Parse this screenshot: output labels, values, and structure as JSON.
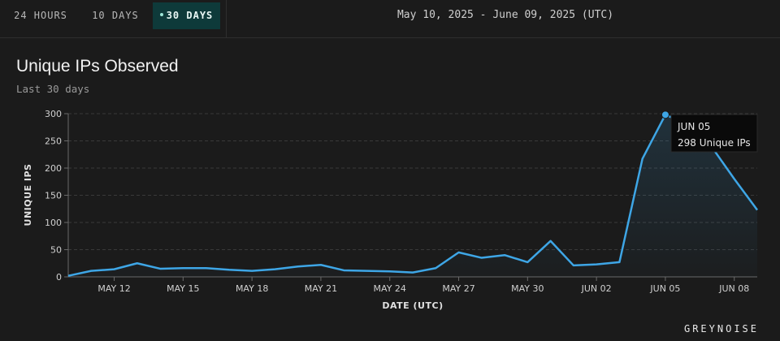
{
  "tabs": [
    {
      "label": "24 HOURS",
      "active": false
    },
    {
      "label": "10 DAYS",
      "active": false
    },
    {
      "label": "30 DAYS",
      "active": true
    }
  ],
  "date_range": "May 10, 2025 - June 09, 2025 (UTC)",
  "title": "Unique IPs Observed",
  "subtitle": "Last 30 days",
  "tooltip": {
    "date": "JUN 05",
    "value": "298 Unique IPs"
  },
  "brand": "GREYNOISE",
  "colors": {
    "line": "#3ea6e6",
    "accent_tab": "#0e3a3a",
    "background": "#1b1b1b"
  },
  "chart_data": {
    "type": "area",
    "xlabel": "DATE (UTC)",
    "ylabel": "UNIQUE IPS",
    "ylim": [
      0,
      300
    ],
    "yticks": [
      0,
      50,
      100,
      150,
      200,
      250,
      300
    ],
    "grid": true,
    "xtick_labels": [
      "MAY 12",
      "MAY 15",
      "MAY 18",
      "MAY 21",
      "MAY 24",
      "MAY 27",
      "MAY 30",
      "JUN 02",
      "JUN 05",
      "JUN 08"
    ],
    "xtick_dates": [
      "2025-05-12",
      "2025-05-15",
      "2025-05-18",
      "2025-05-21",
      "2025-05-24",
      "2025-05-27",
      "2025-05-30",
      "2025-06-02",
      "2025-06-05",
      "2025-06-08"
    ],
    "series": [
      {
        "x": [
          "2025-05-10",
          "2025-05-11",
          "2025-05-12",
          "2025-05-13",
          "2025-05-14",
          "2025-05-15",
          "2025-05-16",
          "2025-05-17",
          "2025-05-18",
          "2025-05-19",
          "2025-05-20",
          "2025-05-21",
          "2025-05-22",
          "2025-05-23",
          "2025-05-24",
          "2025-05-25",
          "2025-05-26",
          "2025-05-27",
          "2025-05-28",
          "2025-05-29",
          "2025-05-30",
          "2025-05-31",
          "2025-06-01",
          "2025-06-02",
          "2025-06-03",
          "2025-06-04",
          "2025-06-05",
          "2025-06-06",
          "2025-06-07",
          "2025-06-08",
          "2025-06-09"
        ],
        "values": [
          2,
          11,
          14,
          25,
          15,
          16,
          16,
          13,
          11,
          14,
          19,
          22,
          12,
          11,
          10,
          8,
          16,
          45,
          35,
          40,
          27,
          66,
          21,
          23,
          27,
          217,
          298,
          280,
          240,
          180,
          123
        ]
      }
    ],
    "highlight": {
      "date": "2025-06-05",
      "value": 298
    }
  }
}
